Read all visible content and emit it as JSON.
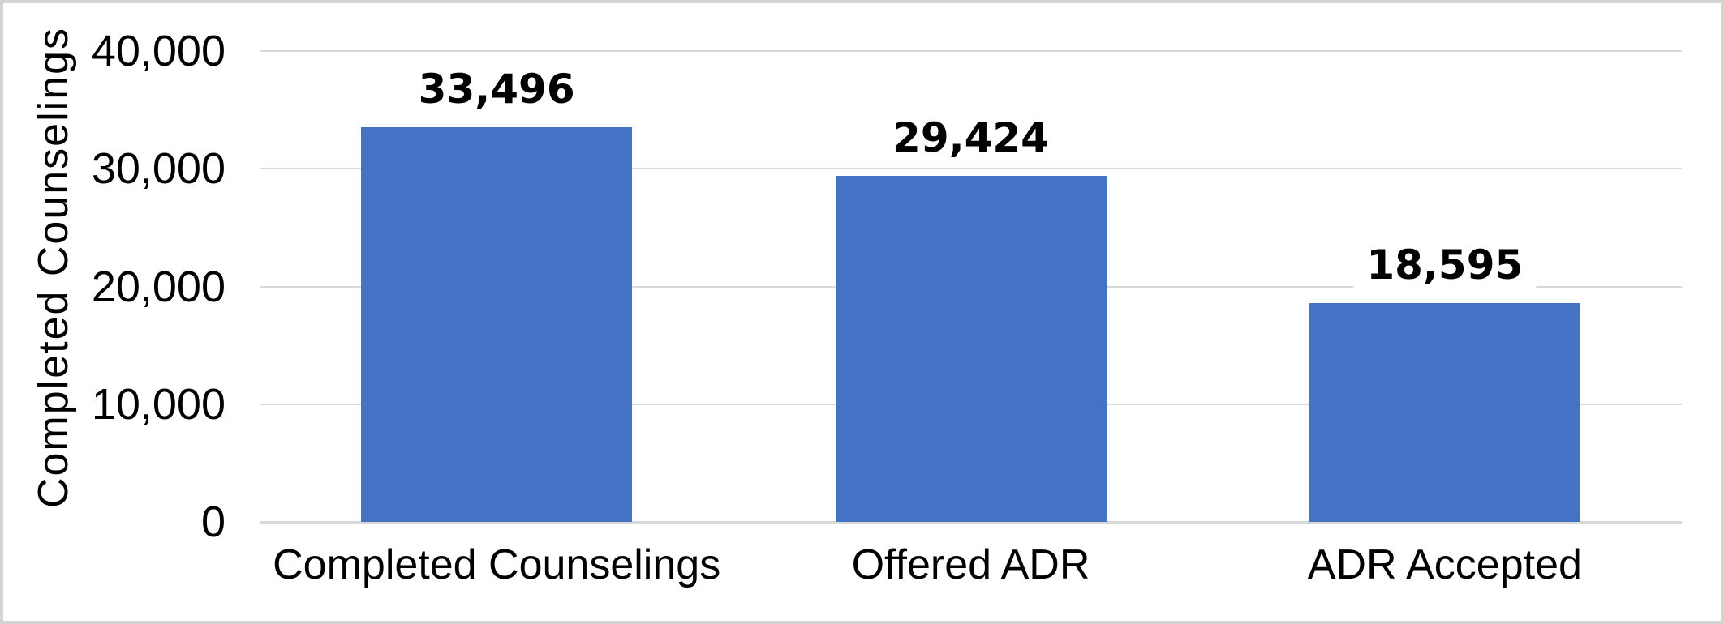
{
  "chart_data": {
    "type": "bar",
    "title": "",
    "xlabel": "",
    "ylabel": "Completed Counselings",
    "categories": [
      "Completed Counselings",
      "Offered ADR",
      "ADR Accepted"
    ],
    "values": [
      33496,
      29424,
      18595
    ],
    "value_labels": [
      "33,496",
      "29,424",
      "18,595"
    ],
    "ylim": [
      0,
      40000
    ],
    "yticks": [
      {
        "value": 40000,
        "label": "40,000"
      },
      {
        "value": 30000,
        "label": "30,000"
      },
      {
        "value": 20000,
        "label": "20,000"
      },
      {
        "value": 10000,
        "label": "10,000"
      },
      {
        "value": 0,
        "label": "0"
      }
    ],
    "grid": true,
    "legend": false,
    "colors": {
      "bar": "#4472C4",
      "gridline": "#D9D9D9",
      "axis_line": "#D9D9D9",
      "text": "#000000",
      "border": "#D4D4D4",
      "background": "#FFFFFF"
    }
  }
}
